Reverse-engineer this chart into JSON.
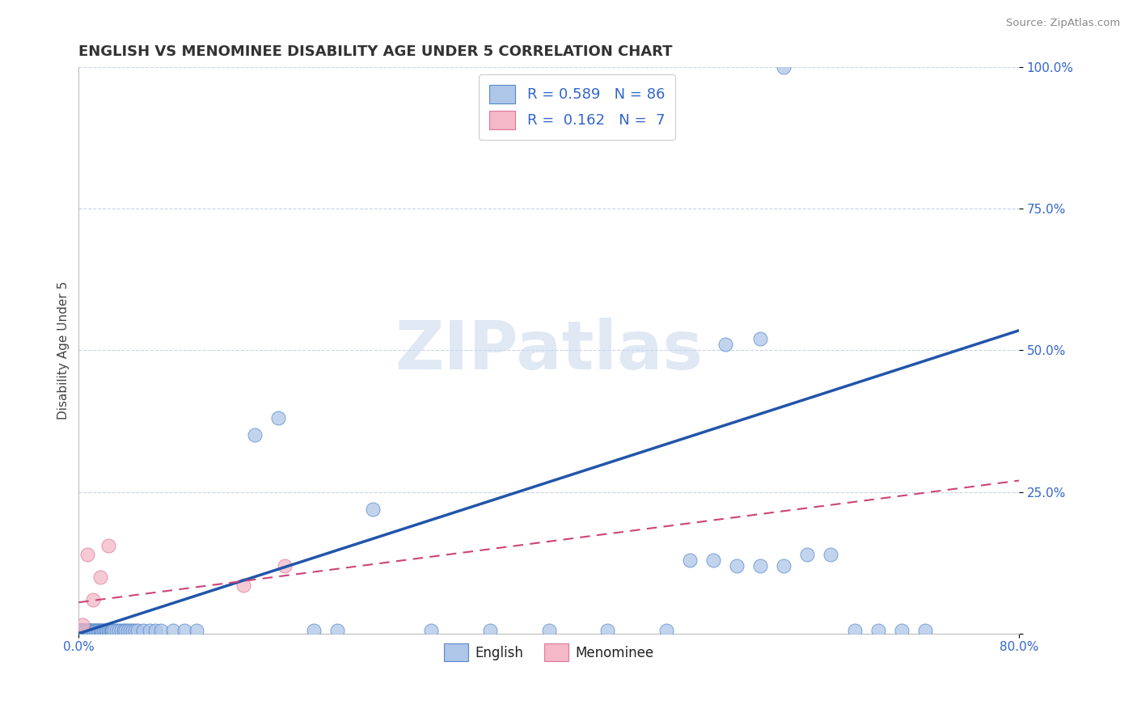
{
  "title": "ENGLISH VS MENOMINEE DISABILITY AGE UNDER 5 CORRELATION CHART",
  "source": "Source: ZipAtlas.com",
  "ylabel": "Disability Age Under 5",
  "xlim": [
    0.0,
    0.8
  ],
  "ylim": [
    0.0,
    1.0
  ],
  "english_R": 0.589,
  "english_N": 86,
  "menominee_R": 0.162,
  "menominee_N": 7,
  "english_color": "#aec6e8",
  "english_edge_color": "#5588cc",
  "english_line_color": "#2255aa",
  "menominee_color": "#f4b8c8",
  "menominee_edge_color": "#dd7799",
  "menominee_line_color": "#cc4477",
  "background_color": "#ffffff",
  "grid_color": "#c8d4e8",
  "watermark": "ZIPatlas",
  "watermark_color": "#ccdaee",
  "english_scatter_x": [
    0.0,
    0.0,
    0.001,
    0.001,
    0.002,
    0.002,
    0.002,
    0.003,
    0.003,
    0.003,
    0.004,
    0.004,
    0.005,
    0.005,
    0.005,
    0.006,
    0.006,
    0.007,
    0.007,
    0.008,
    0.008,
    0.009,
    0.009,
    0.01,
    0.01,
    0.011,
    0.012,
    0.013,
    0.014,
    0.015,
    0.016,
    0.017,
    0.018,
    0.019,
    0.02,
    0.021,
    0.022,
    0.023,
    0.024,
    0.025,
    0.026,
    0.027,
    0.028,
    0.029,
    0.03,
    0.032,
    0.034,
    0.036,
    0.038,
    0.04,
    0.042,
    0.044,
    0.046,
    0.048,
    0.05,
    0.055,
    0.06,
    0.065,
    0.07,
    0.08,
    0.09,
    0.1,
    0.15,
    0.17,
    0.2,
    0.22,
    0.25,
    0.3,
    0.35,
    0.4,
    0.45,
    0.5,
    0.52,
    0.54,
    0.56,
    0.58,
    0.6,
    0.62,
    0.64,
    0.66,
    0.68,
    0.7,
    0.72,
    0.55,
    0.58,
    0.6
  ],
  "english_scatter_y": [
    0.005,
    0.005,
    0.005,
    0.005,
    0.005,
    0.005,
    0.005,
    0.005,
    0.005,
    0.005,
    0.005,
    0.005,
    0.005,
    0.005,
    0.005,
    0.005,
    0.005,
    0.005,
    0.005,
    0.005,
    0.005,
    0.005,
    0.005,
    0.005,
    0.005,
    0.005,
    0.005,
    0.005,
    0.005,
    0.005,
    0.005,
    0.005,
    0.005,
    0.005,
    0.005,
    0.005,
    0.005,
    0.005,
    0.005,
    0.005,
    0.005,
    0.005,
    0.005,
    0.005,
    0.005,
    0.005,
    0.005,
    0.005,
    0.005,
    0.005,
    0.005,
    0.005,
    0.005,
    0.005,
    0.005,
    0.005,
    0.005,
    0.005,
    0.005,
    0.005,
    0.005,
    0.005,
    0.35,
    0.38,
    0.005,
    0.005,
    0.22,
    0.005,
    0.005,
    0.005,
    0.005,
    0.005,
    0.13,
    0.13,
    0.12,
    0.12,
    0.12,
    0.14,
    0.14,
    0.005,
    0.005,
    0.005,
    0.005,
    0.51,
    0.52,
    1.0
  ],
  "menominee_scatter_x": [
    0.003,
    0.007,
    0.012,
    0.018,
    0.025,
    0.14,
    0.175
  ],
  "menominee_scatter_y": [
    0.015,
    0.14,
    0.06,
    0.1,
    0.155,
    0.085,
    0.12
  ],
  "eng_line_x0": 0.0,
  "eng_line_y0": 0.0,
  "eng_line_x1": 0.8,
  "eng_line_y1": 0.535,
  "men_line_x0": 0.0,
  "men_line_y0": 0.055,
  "men_line_x1": 0.8,
  "men_line_y1": 0.27
}
